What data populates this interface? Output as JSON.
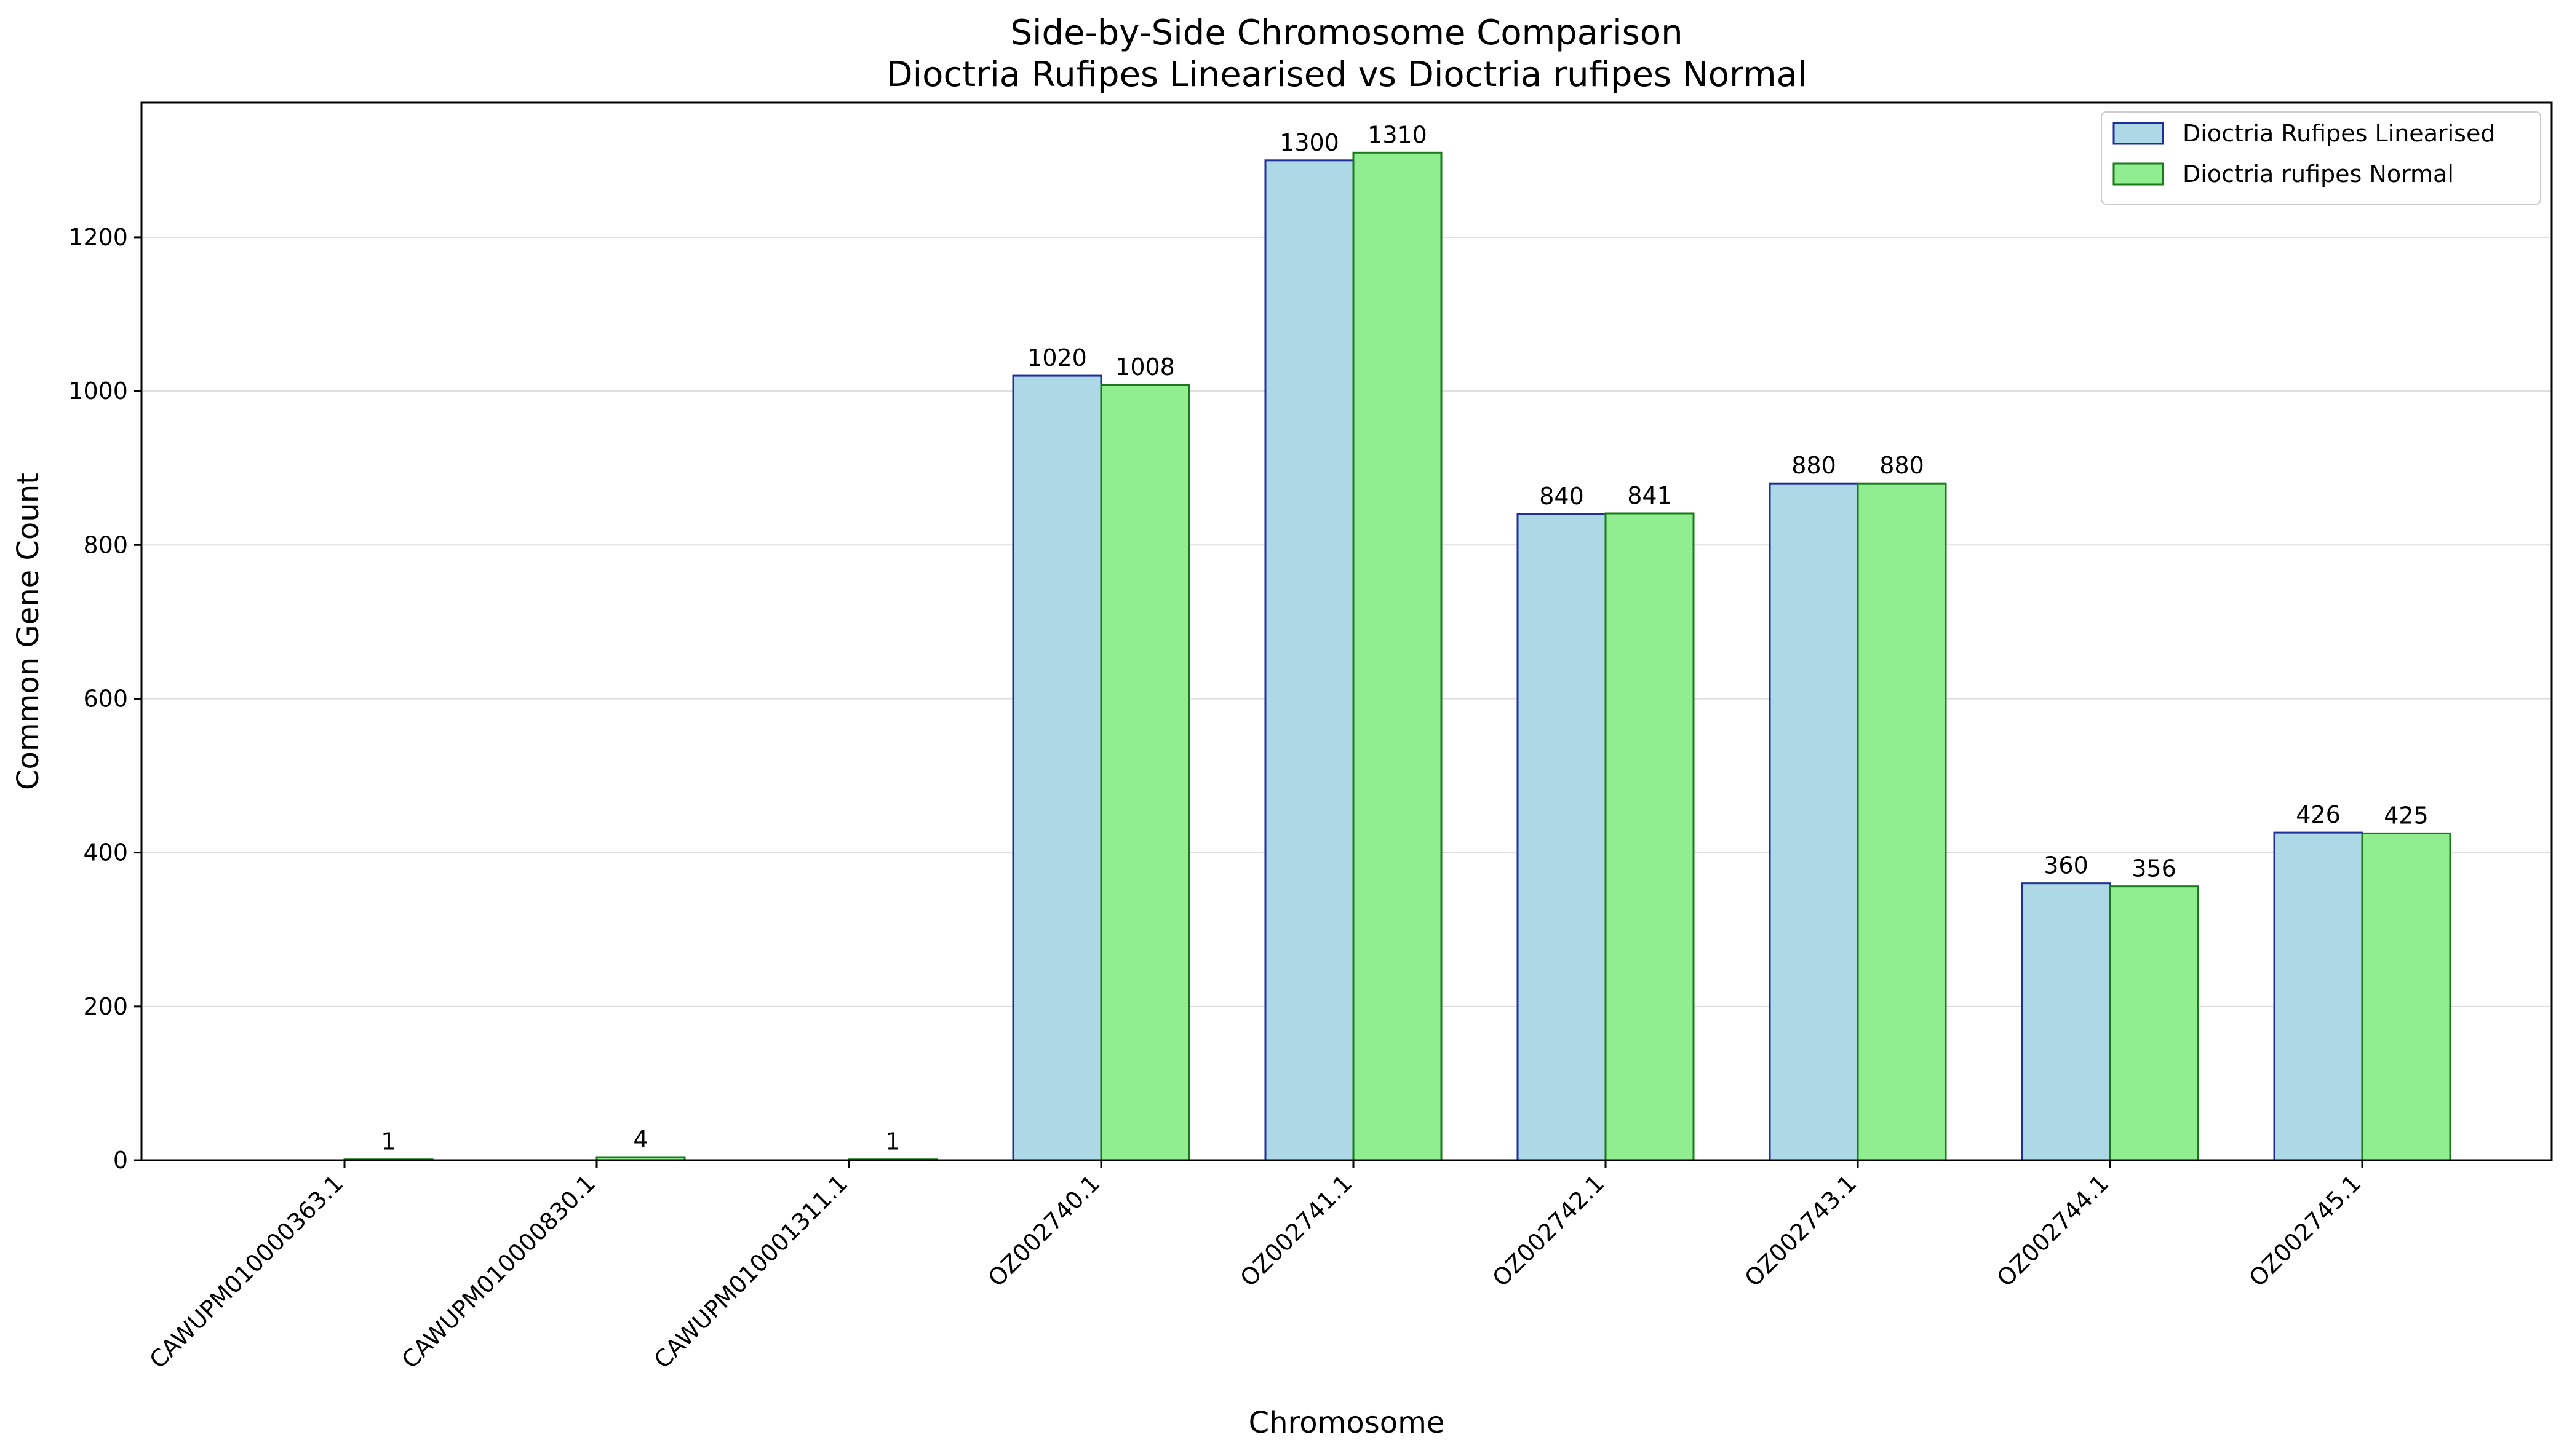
{
  "chart_data": {
    "type": "bar",
    "title": "Side-by-Side Chromosome Comparison",
    "subtitle": "Dioctria Rufipes Linearised vs Dioctria rufipes Normal",
    "xlabel": "Chromosome",
    "ylabel": "Common Gene Count",
    "ylim": [
      0,
      1375
    ],
    "yticks": [
      0,
      200,
      400,
      600,
      800,
      1000,
      1200
    ],
    "grid": "y-axis only",
    "legend_position": "top-right",
    "categories": [
      "CAWUPM010000363.1",
      "CAWUPM010000830.1",
      "CAWUPM010001311.1",
      "OZ002740.1",
      "OZ002741.1",
      "OZ002742.1",
      "OZ002743.1",
      "OZ002744.1",
      "OZ002745.1"
    ],
    "series": [
      {
        "name": "Dioctria Rufipes Linearised",
        "fill": "#add8e6",
        "edge": "#1f2f99",
        "values": [
          0,
          0,
          0,
          1020,
          1300,
          840,
          880,
          360,
          426
        ],
        "labels": [
          "",
          "",
          "",
          "1020",
          "1300",
          "840",
          "880",
          "360",
          "426"
        ]
      },
      {
        "name": "Dioctria rufipes Normal",
        "fill": "#90ee90",
        "edge": "#1a7a1a",
        "values": [
          1,
          4,
          1,
          1008,
          1310,
          841,
          880,
          356,
          425
        ],
        "labels": [
          "1",
          "4",
          "1",
          "1008",
          "1310",
          "841",
          "880",
          "356",
          "425"
        ]
      }
    ]
  }
}
